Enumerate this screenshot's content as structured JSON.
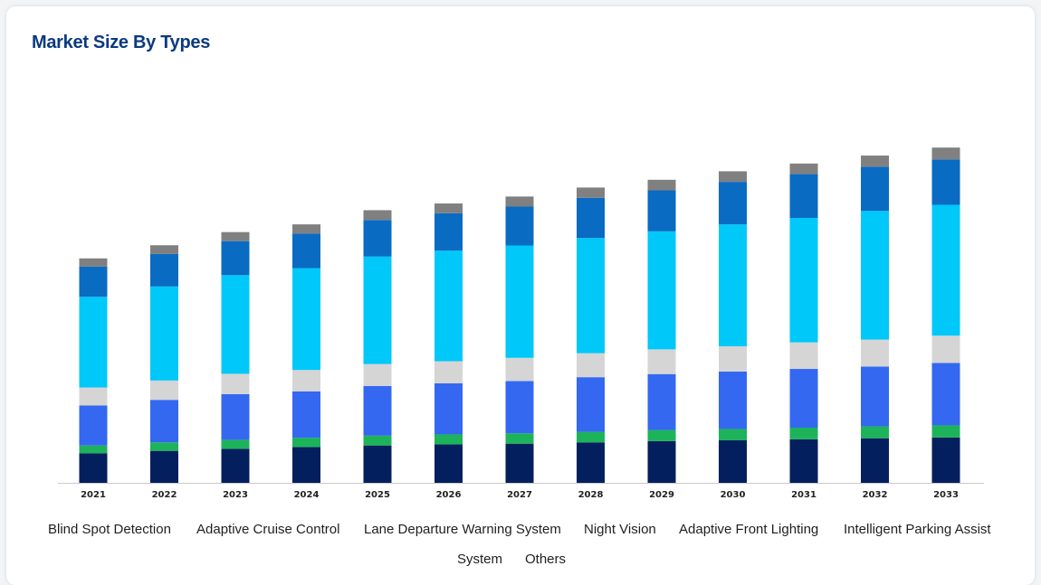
{
  "card": {
    "title": "Market Size By Types"
  },
  "colors": {
    "title": "#0b3a7e",
    "axis": "#c8c8c8"
  },
  "chart_data": {
    "type": "bar",
    "stacked": true,
    "title": "Market Size By Types",
    "xlabel": "",
    "ylabel": "",
    "grid": false,
    "legend_position": "bottom",
    "categories": [
      "2021",
      "2022",
      "2023",
      "2024",
      "2025",
      "2026",
      "2027",
      "2028",
      "2029",
      "2030",
      "2031",
      "2032",
      "2033"
    ],
    "ylim": [
      0,
      130
    ],
    "series": [
      {
        "name": "Blind Spot Detection",
        "color": "#041f5e",
        "values": [
          11.5,
          12.4,
          13.2,
          13.9,
          14.5,
          14.9,
          15.2,
          15.7,
          16.2,
          16.5,
          16.9,
          17.3,
          17.6
        ]
      },
      {
        "name": "Adaptive Cruise Control",
        "color": "#1db35a",
        "values": [
          3.0,
          3.3,
          3.5,
          3.6,
          3.8,
          3.9,
          4.0,
          4.1,
          4.3,
          4.4,
          4.5,
          4.6,
          4.7
        ]
      },
      {
        "name": "Lane Departure Warning System",
        "color": "#3468f0",
        "values": [
          15.5,
          16.5,
          17.7,
          18.0,
          19.3,
          19.8,
          20.3,
          21.2,
          21.7,
          22.3,
          22.8,
          23.2,
          24.2
        ]
      },
      {
        "name": "Night Vision",
        "color": "#d5d5d5",
        "values": [
          7.0,
          7.5,
          7.9,
          8.3,
          8.5,
          8.6,
          9.0,
          9.3,
          9.6,
          9.8,
          10.3,
          10.5,
          10.6
        ]
      },
      {
        "name": "Adaptive Front Lighting",
        "color": "#00c8f8",
        "values": [
          35.2,
          36.5,
          38.3,
          39.5,
          41.7,
          42.9,
          43.6,
          44.7,
          45.8,
          47.3,
          48.3,
          49.9,
          50.8
        ]
      },
      {
        "name": "Intelligent Parking Assist System",
        "color": "#0a6bc2",
        "values": [
          11.7,
          12.6,
          13.2,
          13.4,
          14.2,
          14.5,
          15.1,
          15.6,
          15.9,
          16.5,
          17.0,
          17.2,
          17.6
        ]
      },
      {
        "name": "Others",
        "color": "#808080",
        "values": [
          3.2,
          3.4,
          3.5,
          3.6,
          3.8,
          3.8,
          3.9,
          4.0,
          4.1,
          4.1,
          4.1,
          4.3,
          4.6
        ]
      }
    ],
    "legend_rows": [
      [
        "Blind Spot Detection",
        "Adaptive Cruise Control",
        "Lane Departure Warning System",
        "Night Vision",
        "Adaptive Front Lighting",
        "Intelligent Parking Assist"
      ],
      [
        "System",
        "Others"
      ]
    ]
  }
}
